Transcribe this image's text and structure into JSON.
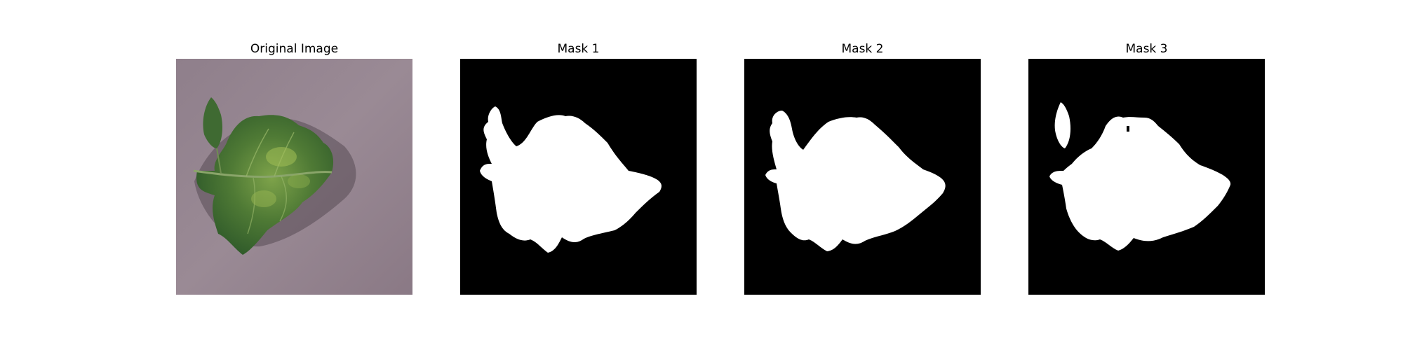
{
  "figure": {
    "panels": [
      {
        "title": "Original Image",
        "kind": "photo"
      },
      {
        "title": "Mask 1",
        "kind": "mask"
      },
      {
        "title": "Mask 2",
        "kind": "mask"
      },
      {
        "title": "Mask 3",
        "kind": "mask"
      }
    ],
    "colors": {
      "background": "#ffffff",
      "mask_foreground": "#ffffff",
      "mask_background": "#000000",
      "surface": "#8e7d89",
      "leaf_dark": "#2f5a2a",
      "leaf_light": "#7ea34a"
    }
  }
}
